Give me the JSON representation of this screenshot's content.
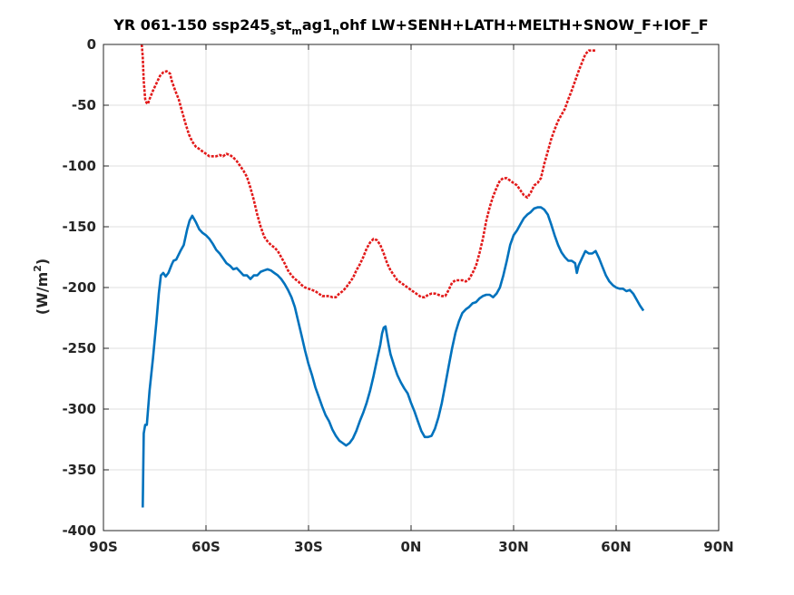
{
  "chart_data": {
    "type": "line",
    "title": "YR 061-150 ssp245",
    "title_parts": [
      "YR 061-150 ssp245",
      "s",
      "st",
      "m",
      "ag1",
      "n",
      "ohf LW+SENH+LATH+MELTH+SNOW_F+IOF_F"
    ],
    "ylabel": "(W/m",
    "ylabel_sup": "2",
    "ylabel_close": ")",
    "xlim": [
      -90,
      90
    ],
    "ylim": [
      -400,
      0
    ],
    "xticks": [
      -90,
      -60,
      -30,
      0,
      30,
      60,
      90
    ],
    "xtick_labels": [
      "90S",
      "60S",
      "30S",
      "0N",
      "30N",
      "60N",
      "90N"
    ],
    "yticks": [
      0,
      -50,
      -100,
      -150,
      -200,
      -250,
      -300,
      -350,
      -400
    ],
    "ytick_labels": [
      "0",
      "-50",
      "-100",
      "-150",
      "-200",
      "-250",
      "-300",
      "-350",
      "-400"
    ],
    "grid": true,
    "series": [
      {
        "color": "#0072bd",
        "style": "solid",
        "points": [
          [
            -78.5,
            -381
          ],
          [
            -78.2,
            -320
          ],
          [
            -77.8,
            -313
          ],
          [
            -77.3,
            -313
          ],
          [
            -76.5,
            -285
          ],
          [
            -75.5,
            -258
          ],
          [
            -74.5,
            -228
          ],
          [
            -73.8,
            -205
          ],
          [
            -73.2,
            -190
          ],
          [
            -72.5,
            -188
          ],
          [
            -71.8,
            -191
          ],
          [
            -71,
            -188
          ],
          [
            -70,
            -181
          ],
          [
            -69.5,
            -178
          ],
          [
            -68.7,
            -177
          ],
          [
            -67.5,
            -170
          ],
          [
            -66.5,
            -165
          ],
          [
            -65.5,
            -152
          ],
          [
            -64.8,
            -145
          ],
          [
            -64,
            -141
          ],
          [
            -63,
            -146
          ],
          [
            -62,
            -152
          ],
          [
            -61,
            -155
          ],
          [
            -60,
            -157
          ],
          [
            -59,
            -160
          ],
          [
            -58,
            -164
          ],
          [
            -57,
            -169
          ],
          [
            -56,
            -172
          ],
          [
            -55,
            -176
          ],
          [
            -54,
            -180
          ],
          [
            -53,
            -182
          ],
          [
            -52,
            -185
          ],
          [
            -51,
            -184
          ],
          [
            -50,
            -187
          ],
          [
            -49,
            -190
          ],
          [
            -48,
            -190
          ],
          [
            -47,
            -193
          ],
          [
            -46,
            -190
          ],
          [
            -45,
            -190
          ],
          [
            -44,
            -187
          ],
          [
            -43,
            -186
          ],
          [
            -42,
            -185
          ],
          [
            -41,
            -186
          ],
          [
            -40,
            -188
          ],
          [
            -39,
            -190
          ],
          [
            -38,
            -193
          ],
          [
            -37,
            -197
          ],
          [
            -36,
            -202
          ],
          [
            -35,
            -208
          ],
          [
            -34,
            -216
          ],
          [
            -33,
            -228
          ],
          [
            -32,
            -240
          ],
          [
            -31,
            -252
          ],
          [
            -30,
            -263
          ],
          [
            -29,
            -272
          ],
          [
            -28,
            -282
          ],
          [
            -27,
            -290
          ],
          [
            -26,
            -298
          ],
          [
            -25,
            -305
          ],
          [
            -24,
            -310
          ],
          [
            -23,
            -317
          ],
          [
            -22,
            -322
          ],
          [
            -21,
            -326
          ],
          [
            -20,
            -328
          ],
          [
            -19,
            -330
          ],
          [
            -18,
            -328
          ],
          [
            -17,
            -324
          ],
          [
            -16,
            -318
          ],
          [
            -15,
            -310
          ],
          [
            -14,
            -303
          ],
          [
            -13,
            -295
          ],
          [
            -12,
            -285
          ],
          [
            -11,
            -273
          ],
          [
            -10,
            -260
          ],
          [
            -9,
            -247
          ],
          [
            -8.5,
            -238
          ],
          [
            -8,
            -233
          ],
          [
            -7.5,
            -232
          ],
          [
            -7,
            -240
          ],
          [
            -6.5,
            -248
          ],
          [
            -6,
            -255
          ],
          [
            -5,
            -264
          ],
          [
            -4,
            -272
          ],
          [
            -3,
            -278
          ],
          [
            -2,
            -283
          ],
          [
            -1,
            -287
          ],
          [
            0,
            -295
          ],
          [
            1,
            -302
          ],
          [
            2,
            -310
          ],
          [
            3,
            -318
          ],
          [
            4,
            -323
          ],
          [
            5,
            -323
          ],
          [
            6,
            -322
          ],
          [
            7,
            -316
          ],
          [
            8,
            -307
          ],
          [
            9,
            -295
          ],
          [
            10,
            -280
          ],
          [
            11,
            -265
          ],
          [
            12,
            -250
          ],
          [
            13,
            -237
          ],
          [
            14,
            -228
          ],
          [
            15,
            -221
          ],
          [
            16,
            -218
          ],
          [
            17,
            -216
          ],
          [
            18,
            -213
          ],
          [
            19,
            -212
          ],
          [
            20,
            -209
          ],
          [
            21,
            -207
          ],
          [
            22,
            -206
          ],
          [
            23,
            -206
          ],
          [
            24,
            -208
          ],
          [
            25,
            -205
          ],
          [
            26,
            -200
          ],
          [
            27,
            -190
          ],
          [
            28,
            -178
          ],
          [
            29,
            -165
          ],
          [
            30,
            -157
          ],
          [
            31,
            -153
          ],
          [
            32,
            -148
          ],
          [
            33,
            -143
          ],
          [
            34,
            -140
          ],
          [
            35,
            -138
          ],
          [
            36,
            -135
          ],
          [
            37,
            -134
          ],
          [
            38,
            -134
          ],
          [
            39,
            -136
          ],
          [
            40,
            -140
          ],
          [
            41,
            -148
          ],
          [
            42,
            -157
          ],
          [
            43,
            -165
          ],
          [
            44,
            -171
          ],
          [
            45,
            -175
          ],
          [
            46,
            -178
          ],
          [
            47,
            -178
          ],
          [
            48,
            -180
          ],
          [
            48.5,
            -188
          ],
          [
            49,
            -182
          ],
          [
            50,
            -176
          ],
          [
            51,
            -170
          ],
          [
            52,
            -172
          ],
          [
            53,
            -172
          ],
          [
            54,
            -170
          ],
          [
            55,
            -176
          ],
          [
            56,
            -183
          ],
          [
            57,
            -190
          ],
          [
            58,
            -195
          ],
          [
            59,
            -198
          ],
          [
            60,
            -200
          ],
          [
            61,
            -201
          ],
          [
            62,
            -201
          ],
          [
            63,
            -203
          ],
          [
            64,
            -202
          ],
          [
            65,
            -205
          ],
          [
            66,
            -210
          ],
          [
            67,
            -215
          ],
          [
            68,
            -219
          ]
        ]
      },
      {
        "color": "#e21a1a",
        "style": "dashed",
        "points": [
          [
            -78.8,
            0
          ],
          [
            -78.5,
            -10
          ],
          [
            -78.2,
            -30
          ],
          [
            -77.8,
            -45
          ],
          [
            -77.4,
            -48
          ],
          [
            -77,
            -49
          ],
          [
            -76.5,
            -45
          ],
          [
            -75.5,
            -38
          ],
          [
            -74.5,
            -32
          ],
          [
            -73.5,
            -26
          ],
          [
            -72.5,
            -23
          ],
          [
            -71.5,
            -22
          ],
          [
            -70.5,
            -24
          ],
          [
            -70,
            -30
          ],
          [
            -69,
            -38
          ],
          [
            -68,
            -45
          ],
          [
            -67,
            -55
          ],
          [
            -66,
            -65
          ],
          [
            -65,
            -74
          ],
          [
            -64,
            -80
          ],
          [
            -63,
            -84
          ],
          [
            -62,
            -86
          ],
          [
            -61,
            -88
          ],
          [
            -60,
            -90
          ],
          [
            -59,
            -92
          ],
          [
            -58,
            -92
          ],
          [
            -57,
            -92
          ],
          [
            -56,
            -91
          ],
          [
            -55,
            -92
          ],
          [
            -54,
            -90
          ],
          [
            -53,
            -91
          ],
          [
            -52,
            -93
          ],
          [
            -51,
            -96
          ],
          [
            -50,
            -100
          ],
          [
            -49,
            -104
          ],
          [
            -48,
            -109
          ],
          [
            -47,
            -118
          ],
          [
            -46,
            -128
          ],
          [
            -45,
            -140
          ],
          [
            -44,
            -150
          ],
          [
            -43,
            -158
          ],
          [
            -42,
            -162
          ],
          [
            -41,
            -165
          ],
          [
            -40,
            -167
          ],
          [
            -39,
            -170
          ],
          [
            -38,
            -175
          ],
          [
            -37,
            -180
          ],
          [
            -36,
            -186
          ],
          [
            -35,
            -190
          ],
          [
            -34,
            -193
          ],
          [
            -33,
            -195
          ],
          [
            -32,
            -198
          ],
          [
            -31,
            -200
          ],
          [
            -30,
            -201
          ],
          [
            -29,
            -202
          ],
          [
            -28,
            -203
          ],
          [
            -27,
            -205
          ],
          [
            -26,
            -207
          ],
          [
            -25,
            -207
          ],
          [
            -24,
            -207
          ],
          [
            -23,
            -208
          ],
          [
            -22,
            -208
          ],
          [
            -21,
            -205
          ],
          [
            -20,
            -203
          ],
          [
            -19,
            -200
          ],
          [
            -18,
            -196
          ],
          [
            -17,
            -192
          ],
          [
            -16,
            -186
          ],
          [
            -15,
            -181
          ],
          [
            -14,
            -175
          ],
          [
            -13,
            -168
          ],
          [
            -12,
            -163
          ],
          [
            -11,
            -160
          ],
          [
            -10,
            -161
          ],
          [
            -9,
            -165
          ],
          [
            -8,
            -172
          ],
          [
            -7,
            -180
          ],
          [
            -6,
            -186
          ],
          [
            -5,
            -190
          ],
          [
            -4,
            -194
          ],
          [
            -3,
            -196
          ],
          [
            -2,
            -198
          ],
          [
            -1,
            -200
          ],
          [
            0,
            -202
          ],
          [
            1,
            -204
          ],
          [
            2,
            -206
          ],
          [
            3,
            -208
          ],
          [
            4,
            -208
          ],
          [
            5,
            -206
          ],
          [
            6,
            -205
          ],
          [
            7,
            -205
          ],
          [
            8,
            -206
          ],
          [
            9,
            -207
          ],
          [
            10,
            -207
          ],
          [
            11,
            -202
          ],
          [
            12,
            -196
          ],
          [
            13,
            -194
          ],
          [
            14,
            -194
          ],
          [
            15,
            -194
          ],
          [
            16,
            -195
          ],
          [
            17,
            -193
          ],
          [
            18,
            -188
          ],
          [
            19,
            -182
          ],
          [
            20,
            -172
          ],
          [
            21,
            -160
          ],
          [
            22,
            -145
          ],
          [
            23,
            -134
          ],
          [
            24,
            -125
          ],
          [
            25,
            -118
          ],
          [
            26,
            -112
          ],
          [
            27,
            -110
          ],
          [
            28,
            -110
          ],
          [
            29,
            -112
          ],
          [
            30,
            -114
          ],
          [
            31,
            -116
          ],
          [
            32,
            -120
          ],
          [
            33,
            -124
          ],
          [
            34,
            -126
          ],
          [
            35,
            -122
          ],
          [
            36,
            -116
          ],
          [
            37,
            -114
          ],
          [
            38,
            -110
          ],
          [
            39,
            -98
          ],
          [
            40,
            -88
          ],
          [
            41,
            -78
          ],
          [
            42,
            -70
          ],
          [
            43,
            -63
          ],
          [
            44,
            -58
          ],
          [
            45,
            -53
          ],
          [
            46,
            -45
          ],
          [
            47,
            -38
          ],
          [
            48,
            -30
          ],
          [
            49,
            -22
          ],
          [
            50,
            -15
          ],
          [
            51,
            -8
          ],
          [
            52,
            -5
          ],
          [
            53,
            -5
          ],
          [
            54,
            -5
          ]
        ]
      }
    ]
  }
}
